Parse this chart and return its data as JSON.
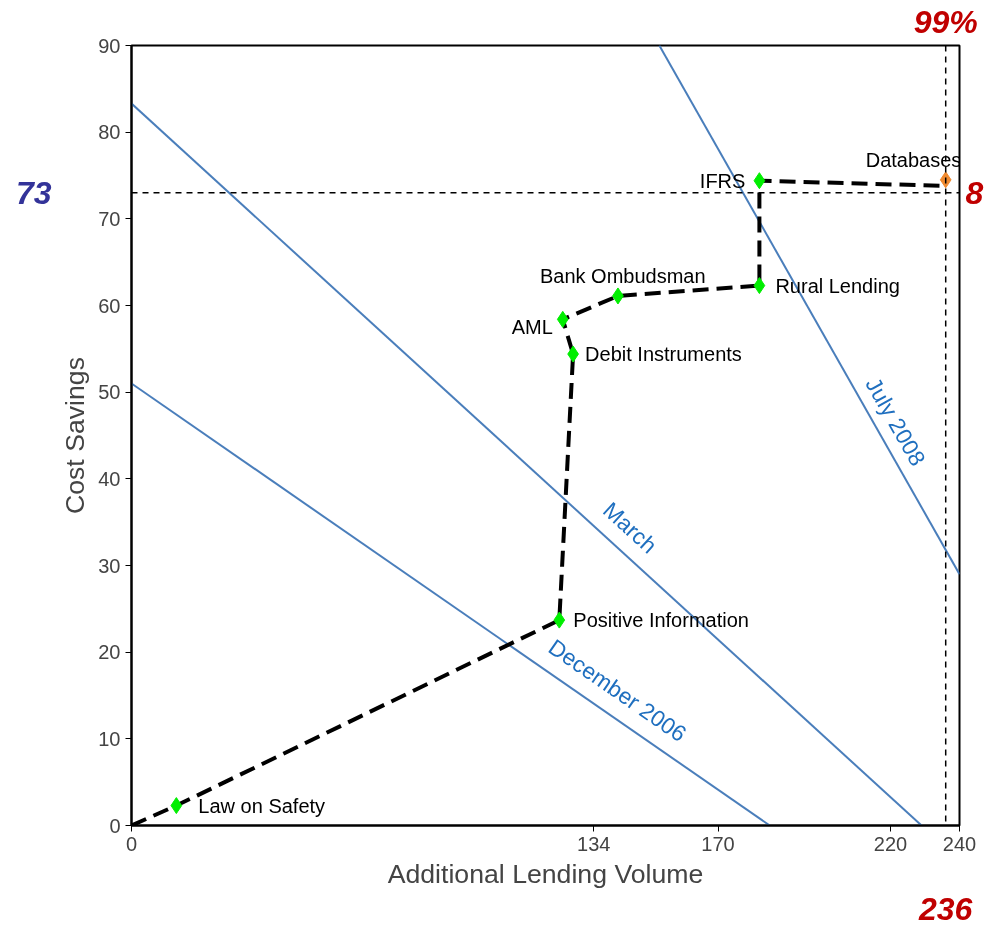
{
  "chart_data": {
    "type": "scatter",
    "xlabel": "Additional Lending Volume",
    "ylabel": "Cost Savings",
    "xlim": [
      0,
      240
    ],
    "ylim": [
      0,
      90
    ],
    "xticks": [
      0,
      134,
      170,
      220,
      240
    ],
    "yticks": [
      0,
      10,
      20,
      30,
      40,
      50,
      60,
      70,
      80,
      90
    ],
    "grid": false,
    "series": [
      {
        "type": "line",
        "name": "December 2006",
        "color": "#4a7ebb",
        "x": [
          0,
          185
        ],
        "values": [
          51,
          0
        ]
      },
      {
        "type": "line",
        "name": "March",
        "color": "#4a7ebb",
        "x": [
          0,
          229
        ],
        "values": [
          83.3,
          0
        ]
      },
      {
        "type": "line",
        "name": "July 2008",
        "color": "#4a7ebb",
        "x": [
          153,
          240
        ],
        "values": [
          90,
          29
        ]
      },
      {
        "type": "line",
        "color": "#000000",
        "line_style": "dashed",
        "marker": "none",
        "x": [
          0,
          13,
          124,
          128,
          125,
          141,
          182,
          182,
          236
        ],
        "values": [
          0,
          2.3,
          23.7,
          54.4,
          58.4,
          61.1,
          62.3,
          74.4,
          73.8
        ]
      },
      {
        "color": "#00ee00",
        "marker": "diamond",
        "x": [
          13,
          124,
          128,
          125,
          141,
          182,
          182
        ],
        "values": [
          2.3,
          23.7,
          54.4,
          58.4,
          61.1,
          62.3,
          74.4
        ]
      },
      {
        "color": "#f08a30",
        "marker": "diamond",
        "x": [
          236
        ],
        "values": [
          74.5
        ]
      }
    ],
    "ref_lines": [
      {
        "axis": "y",
        "value": 73,
        "label": "73",
        "color": "#000000",
        "line_style": "dashed"
      },
      {
        "axis": "x",
        "value": 236,
        "label": "236",
        "color": "#000000",
        "line_style": "dashed"
      }
    ],
    "annotations": [
      {
        "text": "Law on Safety",
        "x": 13,
        "y": 2.3
      },
      {
        "text": "Positive Information",
        "x": 124,
        "y": 23.7
      },
      {
        "text": "Debit Instruments",
        "x": 128,
        "y": 54.4
      },
      {
        "text": "AML",
        "x": 125,
        "y": 58.4
      },
      {
        "text": "Bank Ombudsman",
        "x": 141,
        "y": 61.1
      },
      {
        "text": "Rural Lending",
        "x": 182,
        "y": 62.3
      },
      {
        "text": "IFRS",
        "x": 182,
        "y": 74.4
      },
      {
        "text": "Databases",
        "x": 236,
        "y": 74.5
      },
      "99%",
      "8"
    ]
  }
}
